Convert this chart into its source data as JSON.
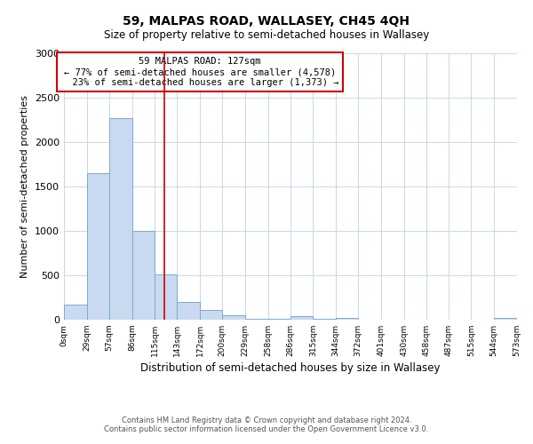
{
  "title": "59, MALPAS ROAD, WALLASEY, CH45 4QH",
  "subtitle": "Size of property relative to semi-detached houses in Wallasey",
  "xlabel": "Distribution of semi-detached houses by size in Wallasey",
  "ylabel": "Number of semi-detached properties",
  "property_size": 127,
  "property_label": "59 MALPAS ROAD: 127sqm",
  "pct_smaller": 77,
  "n_smaller": 4578,
  "pct_larger": 23,
  "n_larger": 1373,
  "bar_color": "#c9d9f0",
  "bar_edge_color": "#7aaad4",
  "vline_color": "#cc0000",
  "annotation_box_color": "#cc0000",
  "bins": [
    0,
    29,
    57,
    86,
    115,
    143,
    172,
    200,
    229,
    258,
    286,
    315,
    344,
    372,
    401,
    430,
    458,
    487,
    515,
    544,
    573
  ],
  "bin_labels": [
    "0sqm",
    "29sqm",
    "57sqm",
    "86sqm",
    "115sqm",
    "143sqm",
    "172sqm",
    "200sqm",
    "229sqm",
    "258sqm",
    "286sqm",
    "315sqm",
    "344sqm",
    "372sqm",
    "401sqm",
    "430sqm",
    "458sqm",
    "487sqm",
    "515sqm",
    "544sqm",
    "573sqm"
  ],
  "counts": [
    175,
    1650,
    2270,
    1000,
    510,
    200,
    110,
    50,
    10,
    10,
    40,
    10,
    20,
    0,
    0,
    0,
    0,
    0,
    0,
    20
  ],
  "ylim": [
    0,
    3000
  ],
  "yticks": [
    0,
    500,
    1000,
    1500,
    2000,
    2500,
    3000
  ],
  "footer_line1": "Contains HM Land Registry data © Crown copyright and database right 2024.",
  "footer_line2": "Contains public sector information licensed under the Open Government Licence v3.0.",
  "background_color": "#ffffff",
  "grid_color": "#c8d8e8"
}
